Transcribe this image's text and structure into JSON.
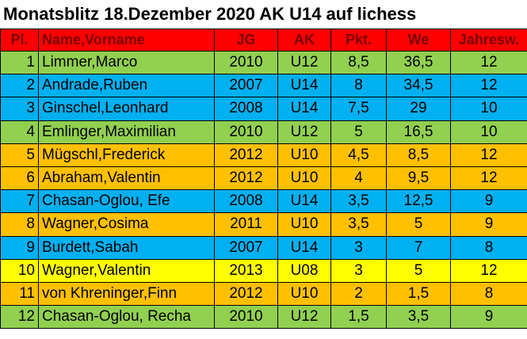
{
  "title": "Monatsblitz 18.Dezember 2020 AK U14 auf lichess",
  "table": {
    "header": [
      "Pl.",
      "Name,Vorname",
      "JG",
      "AK",
      "Pkt.",
      "We",
      "Jahresw."
    ],
    "header_color": "#ff0000",
    "rows": [
      {
        "color": "#92d050",
        "cells": [
          "1",
          "Limmer,Marco",
          "2010",
          "U12",
          "8,5",
          "36,5",
          "12"
        ]
      },
      {
        "color": "#00b0f0",
        "cells": [
          "2",
          "Andrade,Ruben",
          "2007",
          "U14",
          "8",
          "34,5",
          "12"
        ]
      },
      {
        "color": "#00b0f0",
        "cells": [
          "3",
          "Ginschel,Leonhard",
          "2008",
          "U14",
          "7,5",
          "29",
          "10"
        ]
      },
      {
        "color": "#92d050",
        "cells": [
          "4",
          "Emlinger,Maximilian",
          "2010",
          "U12",
          "5",
          "16,5",
          "10"
        ]
      },
      {
        "color": "#ffc000",
        "cells": [
          "5",
          "Mügschl,Frederick",
          "2012",
          "U10",
          "4,5",
          "8,5",
          "12"
        ]
      },
      {
        "color": "#ffc000",
        "cells": [
          "6",
          "Abraham,Valentin",
          "2012",
          "U10",
          "4",
          "9,5",
          "12"
        ]
      },
      {
        "color": "#00b0f0",
        "cells": [
          "7",
          "Chasan-Oglou, Efe",
          "2008",
          "U14",
          "3,5",
          "12,5",
          "9"
        ]
      },
      {
        "color": "#ffc000",
        "cells": [
          "8",
          "Wagner,Cosima",
          "2011",
          "U10",
          "3,5",
          "5",
          "9"
        ]
      },
      {
        "color": "#00b0f0",
        "cells": [
          "9",
          "Burdett,Sabah",
          "2007",
          "U14",
          "3",
          "7",
          "8"
        ]
      },
      {
        "color": "#ffff00",
        "cells": [
          "10",
          "Wagner,Valentin",
          "2013",
          "U08",
          "3",
          "5",
          "12"
        ]
      },
      {
        "color": "#ffc000",
        "cells": [
          "11",
          "von Khreninger,Finn",
          "2012",
          "U10",
          "2",
          "1,5",
          "8"
        ]
      },
      {
        "color": "#92d050",
        "cells": [
          "12",
          "Chasan-Oglou, Recha",
          "2010",
          "U12",
          "1,5",
          "3,5",
          "9"
        ]
      }
    ]
  }
}
